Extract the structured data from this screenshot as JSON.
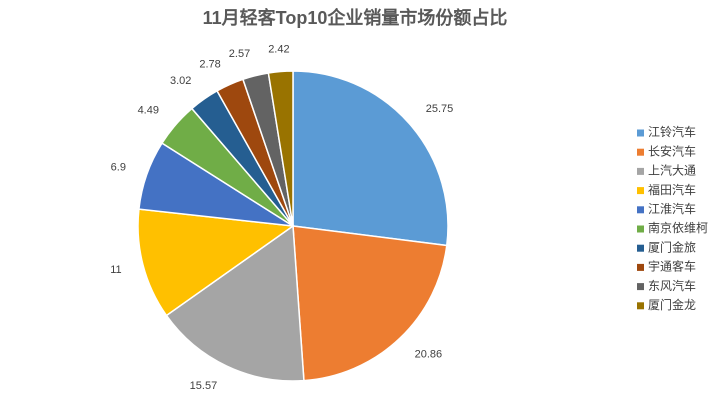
{
  "chart_data": {
    "type": "pie",
    "title": "11月轻客Top10企业销量市场份额占比",
    "categories": [
      "江铃汽车",
      "长安汽车",
      "上汽大通",
      "福田汽车",
      "江淮汽车",
      "南京依维柯",
      "厦门金旅",
      "宇通客车",
      "东风汽车",
      "厦门金龙"
    ],
    "values": [
      25.75,
      20.86,
      15.57,
      11,
      6.9,
      4.49,
      3.02,
      2.78,
      2.57,
      2.42
    ],
    "colors": [
      "#5b9bd5",
      "#ed7d31",
      "#a5a5a5",
      "#ffc000",
      "#4472c4",
      "#70ad47",
      "#255e91",
      "#9e480e",
      "#636363",
      "#997300"
    ],
    "legend": "right"
  }
}
